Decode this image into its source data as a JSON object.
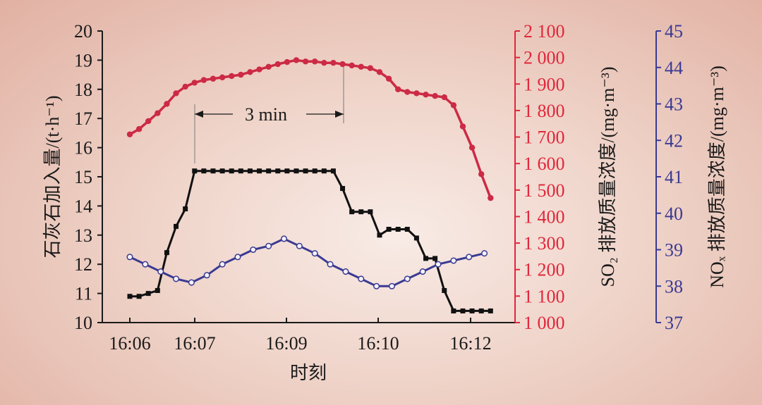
{
  "chart_data": {
    "type": "line",
    "x_ticks": [
      "16:06",
      "16:07",
      "16:09",
      "16:10",
      "16:12"
    ],
    "xlabel": "时刻",
    "annotation": "3 min",
    "axes": {
      "left": {
        "label": "石灰石加入量/(t·h⁻¹)",
        "range": [
          10,
          20
        ],
        "ticks": [
          "10",
          "11",
          "12",
          "13",
          "14",
          "15",
          "16",
          "17",
          "18",
          "19",
          "20"
        ],
        "color": "#1a1a1a"
      },
      "right1": {
        "label": "SO₂ 排放质量浓度/(mg·m⁻³)",
        "range": [
          1000,
          2100
        ],
        "ticks": [
          "1 000",
          "1 100",
          "1 200",
          "1 300",
          "1 400",
          "1 500",
          "1 600",
          "1 700",
          "1 800",
          "1 900",
          "2 000",
          "2 100"
        ],
        "color": "#e1263b"
      },
      "right2": {
        "label": "NOₓ 排放质量浓度/(mg·m⁻³)",
        "range": [
          37,
          45
        ],
        "ticks": [
          "37",
          "38",
          "39",
          "40",
          "41",
          "42",
          "43",
          "44",
          "45"
        ],
        "color": "#3a3a92"
      }
    },
    "series": [
      {
        "axis": "left",
        "color": "#111111",
        "marker": "square",
        "x": [
          0,
          0.15,
          0.3,
          0.45,
          0.6,
          0.75,
          0.9,
          1.05,
          1.2,
          1.35,
          1.5,
          1.65,
          1.8,
          1.95,
          2.1,
          2.25,
          2.4,
          2.55,
          2.7,
          2.85,
          3.0,
          3.15,
          3.3,
          3.45,
          3.6,
          3.75,
          3.9,
          4.05,
          4.2,
          4.35,
          4.5,
          4.65,
          4.8,
          4.95,
          5.1,
          5.25,
          5.4,
          5.55,
          5.7,
          5.85
        ],
        "values": [
          10.9,
          10.9,
          11.0,
          11.1,
          12.4,
          13.3,
          13.9,
          15.2,
          15.2,
          15.2,
          15.2,
          15.2,
          15.2,
          15.2,
          15.2,
          15.2,
          15.2,
          15.2,
          15.2,
          15.2,
          15.2,
          15.2,
          15.2,
          14.6,
          13.8,
          13.8,
          13.8,
          13.0,
          13.2,
          13.2,
          13.2,
          12.9,
          12.2,
          12.2,
          11.1,
          10.4,
          10.4,
          10.4,
          10.4,
          10.4
        ]
      },
      {
        "axis": "right1",
        "color": "#cc2a45",
        "marker": "circle",
        "x": [
          0,
          0.15,
          0.3,
          0.45,
          0.6,
          0.75,
          0.9,
          1.05,
          1.2,
          1.35,
          1.5,
          1.65,
          1.8,
          1.95,
          2.1,
          2.25,
          2.4,
          2.55,
          2.7,
          2.85,
          3.0,
          3.15,
          3.3,
          3.45,
          3.6,
          3.75,
          3.9,
          4.05,
          4.2,
          4.35,
          4.5,
          4.65,
          4.8,
          4.95,
          5.1,
          5.25,
          5.4,
          5.55,
          5.7,
          5.85
        ],
        "values": [
          1710,
          1730,
          1760,
          1790,
          1825,
          1865,
          1890,
          1905,
          1915,
          1920,
          1925,
          1930,
          1935,
          1945,
          1955,
          1965,
          1975,
          1983,
          1990,
          1985,
          1985,
          1980,
          1980,
          1975,
          1970,
          1965,
          1960,
          1945,
          1920,
          1880,
          1870,
          1865,
          1860,
          1855,
          1850,
          1820,
          1740,
          1660,
          1560,
          1470
        ]
      },
      {
        "axis": "right2",
        "color": "#3a3a92",
        "marker": "open-circle",
        "x": [
          0,
          0.25,
          0.5,
          0.75,
          1.0,
          1.25,
          1.5,
          1.75,
          2.0,
          2.25,
          2.5,
          2.75,
          3.0,
          3.25,
          3.5,
          3.75,
          4.0,
          4.25,
          4.5,
          4.75,
          5.0,
          5.25,
          5.5,
          5.75
        ],
        "values": [
          38.8,
          38.6,
          38.4,
          38.2,
          38.1,
          38.3,
          38.6,
          38.8,
          39.0,
          39.1,
          39.3,
          39.1,
          38.9,
          38.6,
          38.4,
          38.2,
          38.0,
          38.0,
          38.2,
          38.4,
          38.6,
          38.7,
          38.8,
          38.9
        ]
      }
    ]
  }
}
